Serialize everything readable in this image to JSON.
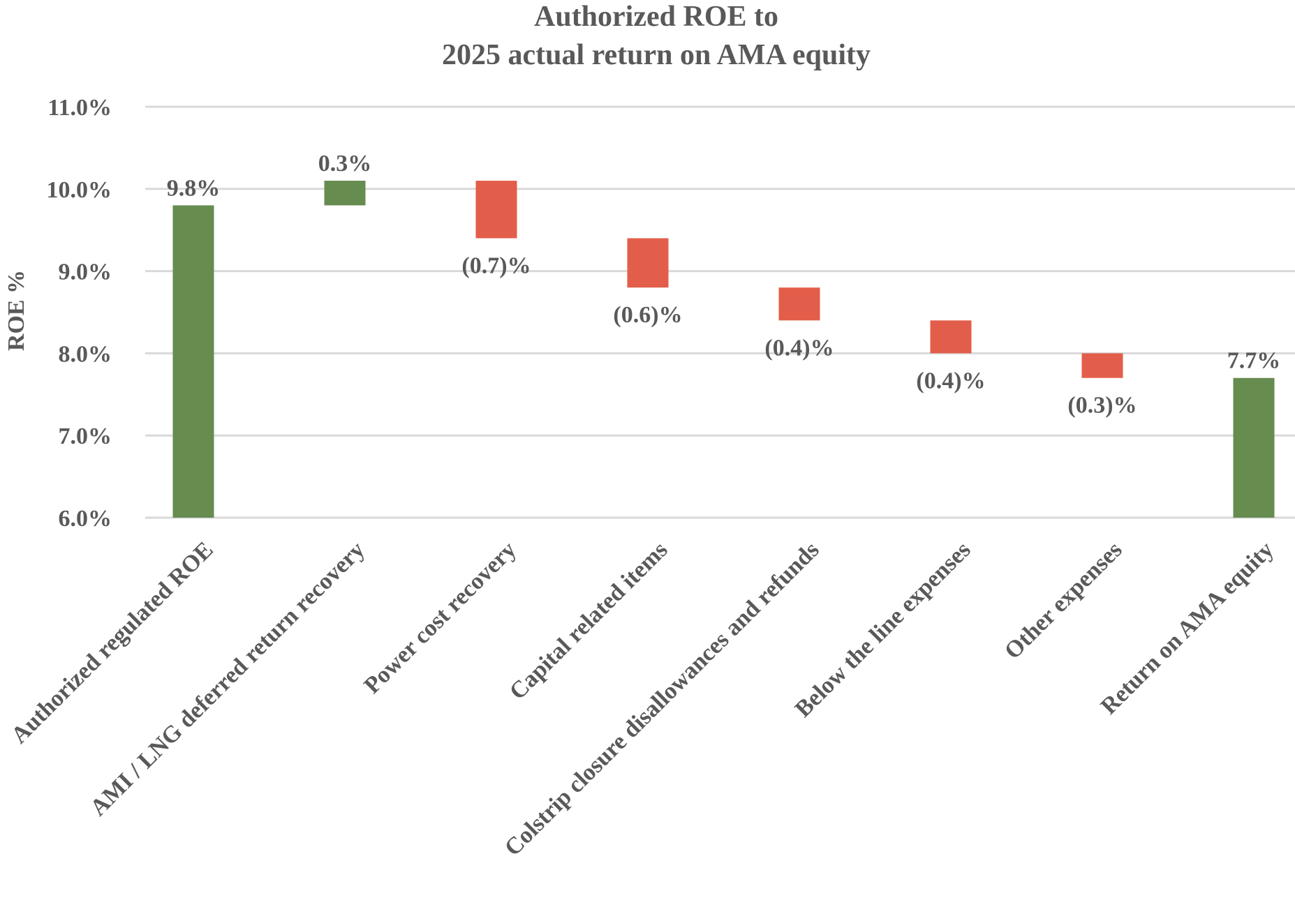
{
  "chart_data": {
    "type": "bar",
    "subtype": "waterfall",
    "title": [
      "Authorized ROE to",
      "2025 actual return on AMA equity"
    ],
    "ylabel": "ROE %",
    "xlabel": "",
    "ylim": [
      6.0,
      11.0
    ],
    "yticks": [
      6.0,
      7.0,
      8.0,
      9.0,
      10.0,
      11.0
    ],
    "ytick_labels": [
      "6.0%",
      "7.0%",
      "8.0%",
      "9.0%",
      "10.0%",
      "11.0%"
    ],
    "grid": true,
    "legend": "none",
    "colors": {
      "total": "#668c50",
      "increase": "#668c50",
      "decrease": "#e35e4a"
    },
    "categories": [
      "Authorized regulated ROE",
      "AMI / LNG deferred return recovery",
      "Power cost recovery",
      "Capital related items",
      "Colstrip closure disallowances and refunds",
      "Below the line expenses",
      "Other expenses",
      "Return on AMA equity"
    ],
    "steps": [
      {
        "kind": "total",
        "start": 6.0,
        "end": 9.8,
        "value": 9.8,
        "label": "9.8%"
      },
      {
        "kind": "increase",
        "start": 9.8,
        "end": 10.1,
        "value": 0.3,
        "label": "0.3%"
      },
      {
        "kind": "decrease",
        "start": 10.1,
        "end": 9.4,
        "value": -0.7,
        "label": "(0.7)%"
      },
      {
        "kind": "decrease",
        "start": 9.4,
        "end": 8.8,
        "value": -0.6,
        "label": "(0.6)%"
      },
      {
        "kind": "decrease",
        "start": 8.8,
        "end": 8.4,
        "value": -0.4,
        "label": "(0.4)%"
      },
      {
        "kind": "decrease",
        "start": 8.4,
        "end": 8.0,
        "value": -0.4,
        "label": "(0.4)%"
      },
      {
        "kind": "decrease",
        "start": 8.0,
        "end": 7.7,
        "value": -0.3,
        "label": "(0.3)%"
      },
      {
        "kind": "total",
        "start": 6.0,
        "end": 7.7,
        "value": 7.7,
        "label": "7.7%"
      }
    ]
  }
}
